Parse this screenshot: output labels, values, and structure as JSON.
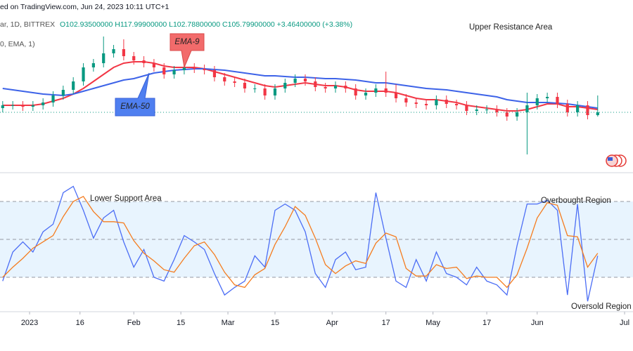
{
  "header": {
    "source": "ed on TradingView.com, Jun 24, 2023 10:11 UTC+1",
    "symbol": "ar, 1D, BITTREX",
    "ohlc": "O102.93500000 H117.99900000 L102.78800000 C105.79900000 +3.46400000 (+3.38%)",
    "indicator": "0, EMA, 1)"
  },
  "chart_data": [
    {
      "type": "candlestick",
      "x": [
        -8,
        -5,
        -2,
        1,
        4,
        7,
        10,
        13,
        16,
        19,
        22,
        25,
        28,
        31,
        34,
        37,
        40,
        43,
        46,
        49,
        52,
        55,
        58,
        61,
        64,
        67,
        70,
        73,
        76,
        79,
        82,
        85,
        88,
        91,
        94,
        97,
        100,
        103,
        106,
        109,
        112,
        115,
        118,
        121,
        124,
        127,
        130,
        133,
        136,
        139,
        142,
        145,
        148,
        151,
        154,
        157,
        160,
        163,
        166,
        169
      ],
      "open": [
        109,
        111,
        111,
        110,
        111,
        113,
        118,
        122,
        128,
        138,
        141,
        148,
        151,
        146,
        143,
        141,
        138,
        133,
        136,
        138,
        137,
        136,
        131,
        128,
        127,
        123,
        123,
        118,
        123,
        127,
        130,
        128,
        124,
        123,
        125,
        123,
        118,
        120,
        123,
        120,
        116,
        113,
        112,
        111,
        115,
        112,
        111,
        107,
        108,
        108,
        106,
        103,
        106,
        111,
        116,
        117,
        112,
        106,
        111,
        104
      ],
      "high": [
        114,
        114,
        114,
        114,
        116,
        121,
        125,
        131,
        141,
        144,
        160,
        154,
        158,
        149,
        146,
        144,
        141,
        139,
        141,
        141,
        140,
        139,
        134,
        131,
        130,
        126,
        126,
        126,
        130,
        133,
        133,
        131,
        127,
        128,
        128,
        126,
        123,
        126,
        135,
        126,
        119,
        116,
        115,
        118,
        118,
        115,
        114,
        111,
        111,
        111,
        109,
        109,
        120,
        119,
        120,
        120,
        115,
        114,
        114,
        118
      ],
      "low": [
        106,
        108,
        107,
        107,
        108,
        110,
        115,
        119,
        125,
        135,
        138,
        145,
        143,
        140,
        138,
        135,
        130,
        130,
        133,
        134,
        133,
        128,
        125,
        124,
        120,
        120,
        115,
        115,
        120,
        124,
        125,
        121,
        120,
        120,
        120,
        115,
        115,
        117,
        117,
        113,
        110,
        109,
        108,
        108,
        109,
        108,
        104,
        104,
        105,
        103,
        100,
        100,
        76,
        108,
        113,
        109,
        103,
        103,
        101,
        103
      ],
      "close": [
        111,
        111,
        110,
        111,
        113,
        118,
        122,
        128,
        138,
        141,
        148,
        151,
        146,
        143,
        141,
        138,
        133,
        136,
        138,
        137,
        136,
        131,
        128,
        127,
        123,
        123,
        118,
        123,
        127,
        130,
        128,
        124,
        123,
        125,
        123,
        118,
        120,
        123,
        120,
        116,
        113,
        112,
        111,
        115,
        112,
        111,
        107,
        108,
        108,
        106,
        103,
        106,
        111,
        116,
        117,
        112,
        106,
        111,
        104,
        106
      ],
      "up_color": "#089981",
      "down_color": "#f23645",
      "series": [
        {
          "name": "EMA-9",
          "color": "#f23645",
          "values": [
            111,
            111,
            111,
            111,
            112,
            114,
            116,
            119,
            123,
            128,
            133,
            138,
            141,
            142,
            142,
            141,
            139,
            138,
            138,
            138,
            137,
            135,
            133,
            131,
            129,
            127,
            125,
            124,
            125,
            126,
            127,
            126,
            125,
            125,
            124,
            122,
            121,
            121,
            121,
            120,
            118,
            116,
            115,
            115,
            114,
            113,
            111,
            110,
            109,
            108,
            107,
            107,
            108,
            110,
            112,
            112,
            110,
            110,
            109,
            108
          ]
        },
        {
          "name": "EMA-50",
          "color": "#3d63e8",
          "values": [
            123,
            122,
            121,
            120,
            119,
            118.5,
            118,
            119,
            121,
            123,
            125,
            127,
            129,
            130,
            132,
            134,
            135,
            136,
            136.5,
            137,
            137,
            136.5,
            136,
            135,
            134,
            133,
            132,
            132,
            131.5,
            131,
            131,
            130.5,
            130,
            130,
            129.5,
            129,
            128,
            127,
            127,
            126,
            125,
            124,
            123,
            122.5,
            122,
            121,
            120,
            119,
            118,
            117,
            115,
            114,
            113,
            113,
            113,
            112.5,
            112,
            111,
            110,
            109
          ]
        }
      ],
      "annotations": [
        "Upper Resistance Area"
      ],
      "xlim": [
        -8.8,
        179.5
      ],
      "ylim": [
        66,
        176
      ]
    },
    {
      "type": "line",
      "x": [
        -8,
        -5,
        -2,
        1,
        4,
        7,
        10,
        13,
        16,
        19,
        22,
        25,
        28,
        31,
        34,
        37,
        40,
        43,
        46,
        49,
        52,
        55,
        58,
        61,
        64,
        67,
        70,
        73,
        76,
        79,
        82,
        85,
        88,
        91,
        94,
        97,
        100,
        103,
        106,
        109,
        112,
        115,
        118,
        121,
        124,
        127,
        130,
        133,
        136,
        139,
        142,
        145,
        148,
        151,
        154,
        157,
        160,
        163,
        166,
        169
      ],
      "series": [
        {
          "color": "#4c6ef5",
          "values": [
            17,
            40,
            48,
            40,
            56,
            62,
            87,
            92,
            73,
            51,
            67,
            73,
            48,
            28,
            42,
            20,
            17,
            34,
            53,
            48,
            42,
            23,
            6,
            12,
            17,
            37,
            28,
            73,
            78,
            73,
            56,
            23,
            12,
            34,
            40,
            26,
            28,
            87,
            51,
            17,
            12,
            34,
            17,
            40,
            23,
            20,
            14,
            28,
            17,
            14,
            6,
            45,
            78,
            78,
            81,
            73,
            6,
            78,
            1,
            37
          ]
        },
        {
          "color": "#f57c1f",
          "values": [
            20,
            28,
            35,
            43,
            48,
            53,
            68,
            80,
            84,
            72,
            64,
            64,
            63,
            49,
            39,
            33,
            26,
            24,
            35,
            45,
            48,
            38,
            24,
            14,
            12,
            22,
            27,
            46,
            60,
            76,
            69,
            51,
            30,
            23,
            29,
            33,
            31,
            47,
            55,
            52,
            27,
            21,
            21,
            30,
            27,
            28,
            19,
            21,
            20,
            20,
            12,
            22,
            43,
            67,
            79,
            77,
            53,
            52,
            28,
            39
          ]
        }
      ],
      "band": [
        20,
        80
      ],
      "midline": 50,
      "annotations": [
        "Lower Support Area",
        "Overbought Region",
        "Oversold Region"
      ],
      "xlim": [
        -8.8,
        179.5
      ],
      "ylim": [
        0,
        100
      ],
      "xticks": [
        {
          "value": 0,
          "label": "2023"
        },
        {
          "value": 15,
          "label": "16"
        },
        {
          "value": 31,
          "label": "Feb"
        },
        {
          "value": 45,
          "label": "15"
        },
        {
          "value": 59,
          "label": "Mar"
        },
        {
          "value": 73,
          "label": "15"
        },
        {
          "value": 90,
          "label": "Apr"
        },
        {
          "value": 106,
          "label": "17"
        },
        {
          "value": 120,
          "label": "May"
        },
        {
          "value": 136,
          "label": "17"
        },
        {
          "value": 151,
          "label": "Jun"
        },
        {
          "value": 177,
          "label": "Jul"
        }
      ]
    }
  ]
}
